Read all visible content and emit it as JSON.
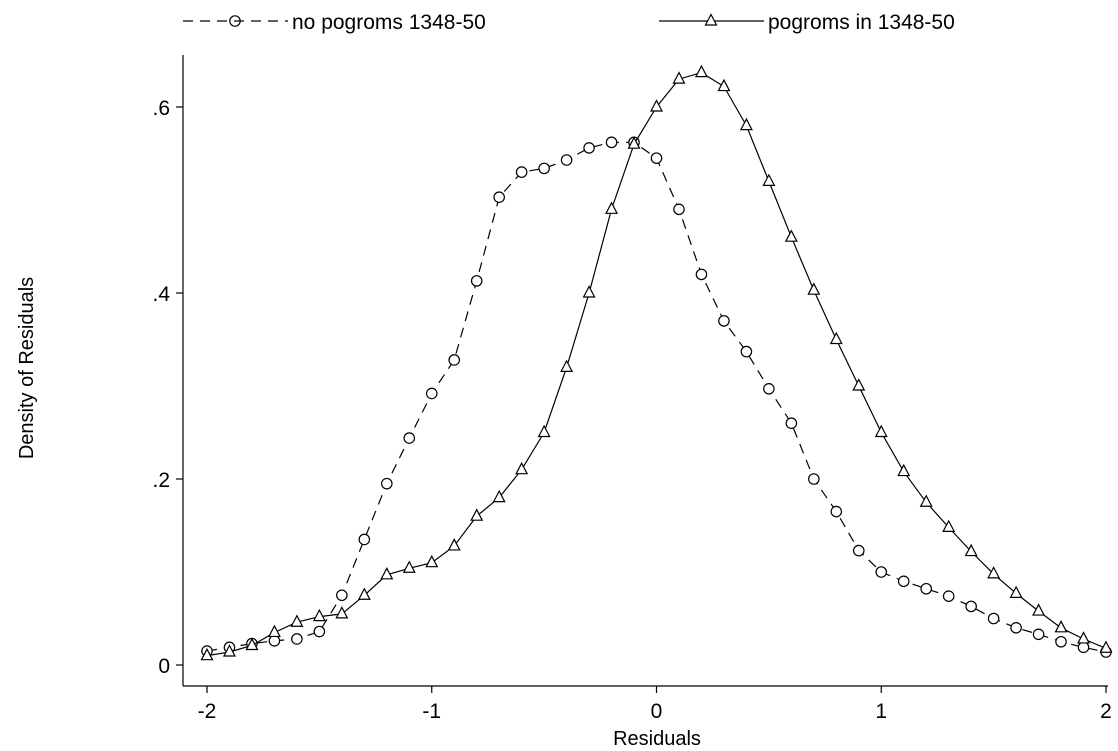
{
  "chart_data": {
    "type": "line",
    "title": "",
    "xlabel": "Residuals",
    "ylabel": "Density of Residuals",
    "xlim": [
      -2,
      2
    ],
    "ylim": [
      0,
      0.65
    ],
    "x_ticks": [
      -2,
      -1,
      0,
      1,
      2
    ],
    "x_tick_labels": [
      "-2",
      "-1",
      "0",
      "1",
      "2"
    ],
    "y_ticks": [
      0,
      0.2,
      0.4,
      0.6
    ],
    "y_tick_labels": [
      "0",
      ".2",
      ".4",
      ".6"
    ],
    "grid": false,
    "legend_position": "top",
    "x": [
      -2.0,
      -1.9,
      -1.8,
      -1.7,
      -1.6,
      -1.5,
      -1.4,
      -1.3,
      -1.2,
      -1.1,
      -1.0,
      -0.9,
      -0.8,
      -0.7,
      -0.6,
      -0.5,
      -0.4,
      -0.3,
      -0.2,
      -0.1,
      0.0,
      0.1,
      0.2,
      0.3,
      0.4,
      0.5,
      0.6,
      0.7,
      0.8,
      0.9,
      1.0,
      1.1,
      1.2,
      1.3,
      1.4,
      1.5,
      1.6,
      1.7,
      1.8,
      1.9,
      2.0
    ],
    "series": [
      {
        "name": "no pogroms 1348-50",
        "line_style": "dashed",
        "marker": "circle",
        "values": [
          0.015,
          0.019,
          0.023,
          0.026,
          0.028,
          0.036,
          0.075,
          0.135,
          0.195,
          0.244,
          0.292,
          0.328,
          0.413,
          0.503,
          0.53,
          0.534,
          0.543,
          0.556,
          0.562,
          0.562,
          0.545,
          0.49,
          0.42,
          0.37,
          0.337,
          0.297,
          0.26,
          0.2,
          0.165,
          0.123,
          0.1,
          0.09,
          0.082,
          0.074,
          0.063,
          0.05,
          0.04,
          0.033,
          0.025,
          0.019,
          0.014
        ]
      },
      {
        "name": "pogroms in 1348-50",
        "line_style": "solid",
        "marker": "triangle",
        "values": [
          0.01,
          0.014,
          0.021,
          0.035,
          0.046,
          0.052,
          0.055,
          0.075,
          0.097,
          0.104,
          0.11,
          0.128,
          0.16,
          0.18,
          0.21,
          0.25,
          0.32,
          0.4,
          0.49,
          0.56,
          0.6,
          0.63,
          0.637,
          0.622,
          0.58,
          0.52,
          0.46,
          0.403,
          0.35,
          0.3,
          0.25,
          0.208,
          0.175,
          0.148,
          0.122,
          0.098,
          0.077,
          0.058,
          0.04,
          0.028,
          0.018
        ]
      }
    ]
  }
}
